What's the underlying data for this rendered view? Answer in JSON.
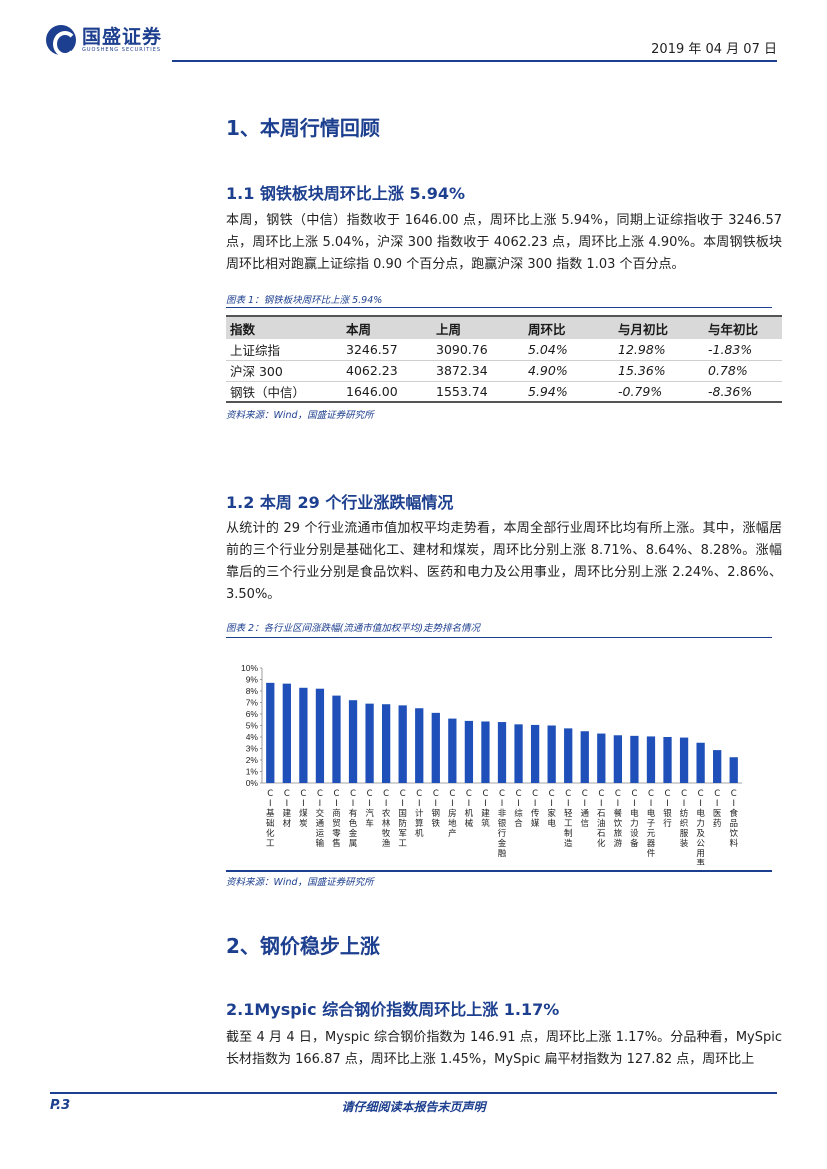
{
  "header": {
    "logo_cn": "国盛证券",
    "logo_en": "GUOSHENG SECURITIES",
    "date": "2019 年 04 月 07 日"
  },
  "section1": {
    "title": "1、本周行情回顾",
    "sub1_title": "1.1 钢铁板块周环比上涨 5.94%",
    "sub1_text": "本周，钢铁（中信）指数收于 1646.00 点，周环比上涨 5.94%，同期上证综指收于 3246.57 点，周环比上涨 5.04%，沪深 300 指数收于 4062.23 点，周环比上涨 4.90%。本周钢铁板块周环比相对跑赢上证综指 0.90 个百分点，跑赢沪深 300 指数 1.03 个百分点。",
    "table_caption": "图表 1：钢铁板块周环比上涨 5.94%",
    "table_headers": [
      "指数",
      "本周",
      "上周",
      "周环比",
      "与月初比",
      "与年初比"
    ],
    "table_rows": [
      [
        "上证综指",
        "3246.57",
        "3090.76",
        "5.04%",
        "12.98%",
        "-1.83%"
      ],
      [
        "沪深 300",
        "4062.23",
        "3872.34",
        "4.90%",
        "15.36%",
        "0.78%"
      ],
      [
        "钢铁（中信）",
        "1646.00",
        "1553.74",
        "5.94%",
        "-0.79%",
        "-8.36%"
      ]
    ],
    "table_source": "资料来源：Wind，国盛证券研究所",
    "sub2_title": "1.2 本周 29 个行业涨跌幅情况",
    "sub2_text": "从统计的 29 个行业流通市值加权平均走势看，本周全部行业周环比均有所上涨。其中，涨幅居前的三个行业分别是基础化工、建材和煤炭，周环比分别上涨 8.71%、8.64%、8.28%。涨幅靠后的三个行业分别是食品饮料、医药和电力及公用事业，周环比分别上涨 2.24%、2.86%、3.50%。",
    "chart_caption": "图表 2：各行业区间涨跌幅(流通市值加权平均)走势排名情况",
    "chart_source": "资料来源：Wind，国盛证券研究所"
  },
  "section2": {
    "title": "2、钢价稳步上涨",
    "sub1_title": "2.1Myspic 综合钢价指数周环比上涨 1.17%",
    "sub1_text": "截至 4 月 4 日，Myspic 综合钢价指数为 146.91 点，周环比上涨 1.17%。分品种看，MySpic 长材指数为 166.87 点，周环比上涨 1.45%，MySpic 扁平材指数为 127.82 点，周环比上"
  },
  "footer": {
    "page": "P.3",
    "disclaimer": "请仔细阅读本报告末页声明"
  },
  "chart_data": {
    "type": "bar",
    "categories": [
      "CI基础化工",
      "CI建材",
      "CI煤炭",
      "CI交通运输",
      "CI商贸零售",
      "CI有色金属",
      "CI汽车",
      "CI农林牧渔",
      "CI国防军工",
      "CI计算机",
      "CI钢铁",
      "CI房地产",
      "CI机械",
      "CI建筑",
      "CI非银行金融",
      "CI综合",
      "CI传媒",
      "CI家电",
      "CI轻工制造",
      "CI通信",
      "CI石油石化",
      "CI餐饮旅游",
      "CI电力设备",
      "CI电子元器件",
      "CI银行",
      "CI纺织服装",
      "CI电力及公用事业",
      "CI医药",
      "CI食品饮料"
    ],
    "values": [
      8.71,
      8.64,
      8.28,
      8.2,
      7.6,
      7.2,
      6.9,
      6.85,
      6.75,
      6.5,
      6.1,
      5.6,
      5.4,
      5.35,
      5.3,
      5.1,
      5.05,
      5.0,
      4.75,
      4.5,
      4.3,
      4.15,
      4.1,
      4.05,
      4.0,
      3.95,
      3.5,
      2.86,
      2.24
    ],
    "ylim": [
      0,
      10
    ],
    "yticks": [
      "0%",
      "1%",
      "2%",
      "3%",
      "4%",
      "5%",
      "6%",
      "7%",
      "8%",
      "9%",
      "10%"
    ],
    "bar_color": "#1f4fb8"
  }
}
